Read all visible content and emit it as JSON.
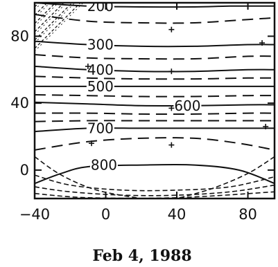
{
  "chart_data": {
    "type": "contour",
    "caption": "Feb 4, 1988",
    "xlabel": "",
    "ylabel": "",
    "xlim": [
      -40,
      95
    ],
    "ylim": [
      -17,
      100
    ],
    "x_ticks": [
      -40,
      0,
      40,
      80
    ],
    "x_tick_labels": [
      "−40",
      "0",
      "40",
      "80"
    ],
    "y_ticks": [
      0,
      40,
      80
    ],
    "y_tick_labels": [
      "0",
      "40",
      "80"
    ],
    "grid": false,
    "solid_contours": [
      {
        "label": "200",
        "label_x": -3,
        "label_y": 98,
        "points": [
          [
            -40,
            100
          ],
          [
            -10,
            98
          ],
          [
            20,
            97.5
          ],
          [
            50,
            97.5
          ],
          [
            70,
            98
          ],
          [
            95,
            98
          ]
        ]
      },
      {
        "label": "300",
        "label_x": -3,
        "label_y": 75,
        "points": [
          [
            -40,
            77
          ],
          [
            -10,
            75
          ],
          [
            20,
            74
          ],
          [
            50,
            74
          ],
          [
            80,
            75
          ],
          [
            95,
            75
          ]
        ]
      },
      {
        "label": "400",
        "label_x": -3,
        "label_y": 60,
        "points": [
          [
            -40,
            62
          ],
          [
            -10,
            60
          ],
          [
            20,
            59
          ],
          [
            50,
            59
          ],
          [
            80,
            60
          ],
          [
            95,
            60
          ]
        ]
      },
      {
        "label": "500",
        "label_x": -3,
        "label_y": 50,
        "points": [
          [
            -40,
            50
          ],
          [
            -10,
            50
          ],
          [
            20,
            50
          ],
          [
            50,
            50
          ],
          [
            80,
            50
          ],
          [
            95,
            50
          ]
        ]
      },
      {
        "label": "600",
        "label_x": 46,
        "label_y": 38.5,
        "points": [
          [
            -40,
            40.5
          ],
          [
            -10,
            39.5
          ],
          [
            20,
            38.5
          ],
          [
            50,
            38.5
          ],
          [
            80,
            39
          ],
          [
            95,
            39
          ]
        ]
      },
      {
        "label": "700",
        "label_x": -3,
        "label_y": 25,
        "points": [
          [
            -40,
            23
          ],
          [
            -10,
            25
          ],
          [
            20,
            25
          ],
          [
            50,
            25
          ],
          [
            80,
            25
          ],
          [
            95,
            25
          ]
        ]
      },
      {
        "label": "800",
        "label_x": -1,
        "label_y": 3,
        "points": [
          [
            -40,
            -8
          ],
          [
            -25,
            -2
          ],
          [
            -10,
            2
          ],
          [
            20,
            3
          ],
          [
            50,
            3
          ],
          [
            75,
            0
          ],
          [
            95,
            -8
          ]
        ]
      }
    ],
    "dashed_contours": [
      {
        "points": [
          [
            -40,
            93
          ],
          [
            -10,
            89
          ],
          [
            20,
            88
          ],
          [
            50,
            88
          ],
          [
            80,
            90
          ],
          [
            95,
            91
          ]
        ]
      },
      {
        "points": [
          [
            -40,
            69
          ],
          [
            -10,
            67
          ],
          [
            20,
            66.5
          ],
          [
            50,
            66.5
          ],
          [
            80,
            68
          ],
          [
            95,
            68
          ]
        ]
      },
      {
        "points": [
          [
            -40,
            56
          ],
          [
            -10,
            55
          ],
          [
            20,
            54.5
          ],
          [
            50,
            54.5
          ],
          [
            80,
            55
          ],
          [
            95,
            55
          ]
        ]
      },
      {
        "points": [
          [
            -40,
            45
          ],
          [
            -10,
            44.5
          ],
          [
            20,
            44
          ],
          [
            50,
            44
          ],
          [
            80,
            44.5
          ],
          [
            95,
            44.5
          ]
        ]
      },
      {
        "points": [
          [
            -40,
            34
          ],
          [
            -10,
            34
          ],
          [
            20,
            33.5
          ],
          [
            50,
            33.5
          ],
          [
            80,
            34
          ],
          [
            95,
            34
          ]
        ]
      },
      {
        "points": [
          [
            -40,
            29
          ],
          [
            -10,
            29.5
          ],
          [
            20,
            29.5
          ],
          [
            50,
            29.5
          ],
          [
            80,
            29.5
          ],
          [
            95,
            29.5
          ]
        ]
      },
      {
        "points": [
          [
            -40,
            12
          ],
          [
            -10,
            17
          ],
          [
            20,
            19
          ],
          [
            50,
            19
          ],
          [
            75,
            16
          ],
          [
            95,
            12
          ]
        ]
      }
    ],
    "plus_markers": [
      {
        "x": 37,
        "y": 84
      },
      {
        "x": -10,
        "y": 62
      },
      {
        "x": 37,
        "y": 59
      },
      {
        "x": 37,
        "y": 37
      },
      {
        "x": 90,
        "y": 26
      },
      {
        "x": -8,
        "y": 16
      },
      {
        "x": 37,
        "y": 15
      },
      {
        "x": 88,
        "y": 76
      }
    ],
    "hatched_regions": [
      "top-left corner",
      "bottom"
    ]
  }
}
